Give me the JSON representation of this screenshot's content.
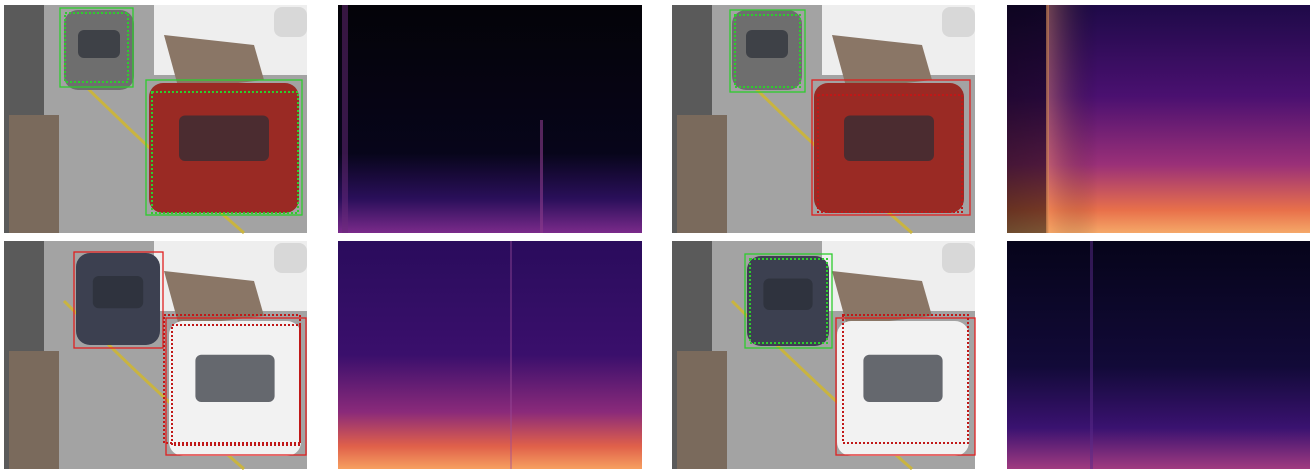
{
  "panels": [
    {
      "boxes": [
        {
          "color": "#2ecc2e",
          "line": "solid"
        },
        {
          "color": "#2ecc2e",
          "line": "dotted"
        },
        {
          "color": "#2ecc2e",
          "line": "solid"
        },
        {
          "color": "#2ecc2e",
          "line": "dotted"
        }
      ]
    },
    {
      "boxes": [
        {
          "color": "#2ecc2e",
          "line": "solid"
        },
        {
          "color": "#2ecc2e",
          "line": "dotted"
        },
        {
          "color": "#e02020",
          "line": "solid"
        },
        {
          "color": "#c01818",
          "line": "dotted"
        }
      ]
    },
    {
      "boxes": [
        {
          "color": "#e02020",
          "line": "solid"
        },
        {
          "color": "#c01818",
          "line": "dotted"
        },
        {
          "color": "#e02020",
          "line": "solid"
        },
        {
          "color": "#c01818",
          "line": "dotted"
        }
      ]
    },
    {
      "boxes": [
        {
          "color": "#2ecc2e",
          "line": "solid"
        },
        {
          "color": "#2ecc2e",
          "line": "dotted"
        },
        {
          "color": "#e02020",
          "line": "solid"
        },
        {
          "color": "#c01818",
          "line": "dotted"
        }
      ]
    }
  ]
}
